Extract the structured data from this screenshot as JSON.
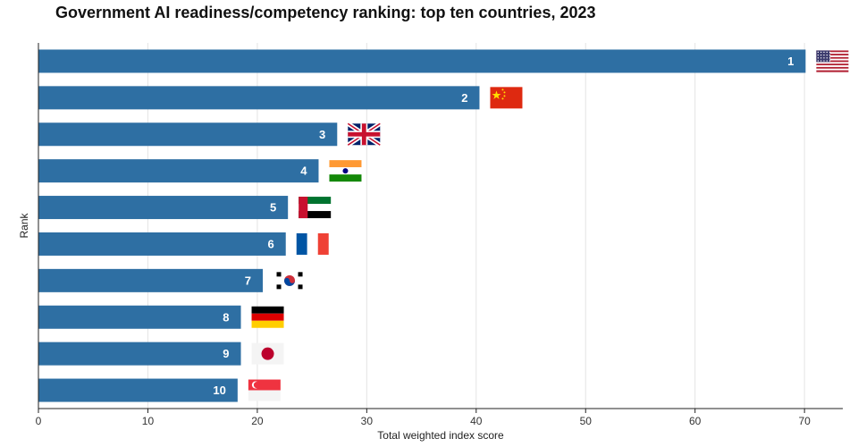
{
  "chart_data": {
    "type": "bar",
    "orientation": "horizontal",
    "title": "Government AI readiness/competency ranking: top ten countries, 2023",
    "xlabel": "Total weighted index score",
    "ylabel": "Rank",
    "xlim": [
      0,
      73.5
    ],
    "xticks": [
      0,
      10,
      20,
      30,
      40,
      50,
      60,
      70
    ],
    "grid": "vertical",
    "bar_color": "#2e6fa3",
    "categories": [
      "1",
      "2",
      "3",
      "4",
      "5",
      "6",
      "7",
      "8",
      "9",
      "10"
    ],
    "flags": [
      "united-states-flag-icon",
      "china-flag-icon",
      "united-kingdom-flag-icon",
      "india-flag-icon",
      "uae-flag-icon",
      "france-flag-icon",
      "south-korea-flag-icon",
      "germany-flag-icon",
      "japan-flag-icon",
      "singapore-flag-icon"
    ],
    "values": [
      70.1,
      40.3,
      27.3,
      25.6,
      22.8,
      22.6,
      20.5,
      18.5,
      18.5,
      18.2
    ]
  }
}
